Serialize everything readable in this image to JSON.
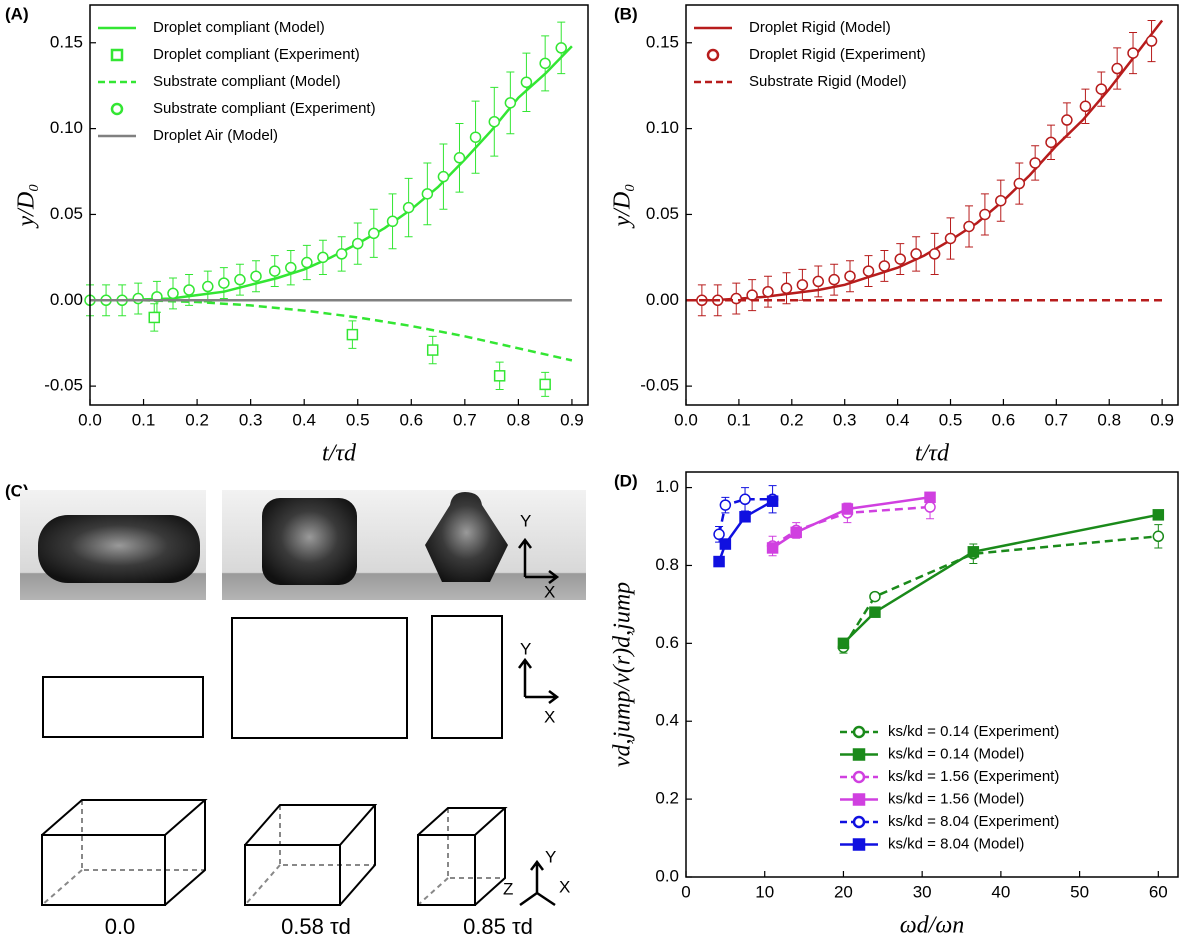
{
  "chart_data": [
    {
      "type": "line",
      "panel_label": "(A)",
      "x_label": "t/τd",
      "y_label": "y/D₀",
      "xlim": [
        0,
        0.93
      ],
      "ylim": [
        -0.061,
        0.172
      ],
      "xticks": [
        {
          "value": 0,
          "label": "0.0"
        },
        0.1,
        0.2,
        0.3,
        0.4,
        0.5,
        0.6,
        0.7,
        0.8,
        0.9
      ],
      "yticks": [
        -0.05,
        {
          "value": 0,
          "label": "0.00"
        },
        0.05,
        {
          "value": 0.1,
          "label": "0.10"
        },
        0.15
      ],
      "legend": "upper left",
      "series": [
        {
          "name": "Droplet compliant (Model)",
          "color": "#33e633",
          "line_style": "solid",
          "x": [
            0,
            0.05,
            0.1,
            0.15,
            0.2,
            0.25,
            0.3,
            0.35,
            0.4,
            0.45,
            0.5,
            0.55,
            0.6,
            0.65,
            0.7,
            0.75,
            0.8,
            0.85,
            0.9
          ],
          "values": [
            0,
            0,
            0.0005,
            0.001,
            0.003,
            0.005,
            0.009,
            0.013,
            0.018,
            0.025,
            0.033,
            0.042,
            0.053,
            0.066,
            0.082,
            0.099,
            0.118,
            0.132,
            0.148
          ]
        },
        {
          "name": "Droplet compliant (Experiment)",
          "color": "#33e633",
          "marker": "open-square",
          "x": [
            0.12,
            0.49,
            0.64,
            0.765,
            0.85
          ],
          "values": [
            -0.01,
            -0.02,
            -0.029,
            -0.044,
            -0.049
          ],
          "errors": [
            0.008,
            0.008,
            0.008,
            0.008,
            0.007
          ]
        },
        {
          "name": "Substrate compliant (Model)",
          "color": "#33e633",
          "line_style": "dashed",
          "x": [
            0,
            0.1,
            0.2,
            0.3,
            0.4,
            0.5,
            0.6,
            0.7,
            0.8,
            0.9
          ],
          "values": [
            0,
            0,
            -0.001,
            -0.003,
            -0.006,
            -0.01,
            -0.015,
            -0.021,
            -0.028,
            -0.035
          ]
        },
        {
          "name": "Substrate compliant (Experiment)",
          "color": "#33e633",
          "marker": "open-circle",
          "x": [
            0,
            0.03,
            0.06,
            0.09,
            0.125,
            0.155,
            0.185,
            0.22,
            0.25,
            0.28,
            0.31,
            0.345,
            0.375,
            0.405,
            0.435,
            0.47,
            0.5,
            0.53,
            0.565,
            0.595,
            0.63,
            0.66,
            0.69,
            0.72,
            0.755,
            0.785,
            0.815,
            0.85,
            0.88
          ],
          "values": [
            0,
            0,
            0,
            0.001,
            0.002,
            0.004,
            0.006,
            0.008,
            0.01,
            0.012,
            0.014,
            0.017,
            0.019,
            0.022,
            0.025,
            0.027,
            0.033,
            0.039,
            0.046,
            0.054,
            0.062,
            0.072,
            0.083,
            0.095,
            0.104,
            0.115,
            0.127,
            0.138,
            0.147
          ],
          "errors": [
            0.009,
            0.009,
            0.009,
            0.009,
            0.009,
            0.009,
            0.009,
            0.009,
            0.009,
            0.009,
            0.009,
            0.009,
            0.01,
            0.01,
            0.01,
            0.01,
            0.012,
            0.014,
            0.016,
            0.017,
            0.018,
            0.019,
            0.02,
            0.021,
            0.02,
            0.018,
            0.017,
            0.016,
            0.015
          ]
        },
        {
          "name": "Droplet Air (Model)",
          "color": "#808080",
          "line_style": "solid",
          "x": [
            0,
            0.9
          ],
          "values": [
            0,
            0
          ]
        }
      ]
    },
    {
      "type": "line",
      "panel_label": "(B)",
      "x_label": "t/τd",
      "y_label": "y/D₀",
      "xlim": [
        0,
        0.93
      ],
      "ylim": [
        -0.061,
        0.172
      ],
      "xticks": [
        {
          "value": 0,
          "label": "0.0"
        },
        0.1,
        0.2,
        0.3,
        0.4,
        0.5,
        0.6,
        0.7,
        0.8,
        0.9
      ],
      "yticks": [
        -0.05,
        {
          "value": 0,
          "label": "0.00"
        },
        0.05,
        {
          "value": 0.1,
          "label": "0.10"
        },
        0.15
      ],
      "legend": "upper left",
      "series": [
        {
          "name": "Droplet Rigid (Model)",
          "color": "#b71c1c",
          "line_style": "solid",
          "x": [
            0,
            0.05,
            0.1,
            0.15,
            0.2,
            0.25,
            0.3,
            0.35,
            0.4,
            0.45,
            0.5,
            0.55,
            0.6,
            0.65,
            0.7,
            0.75,
            0.8,
            0.85,
            0.9
          ],
          "values": [
            0,
            0,
            0.001,
            0.002,
            0.004,
            0.006,
            0.009,
            0.014,
            0.019,
            0.026,
            0.035,
            0.045,
            0.058,
            0.073,
            0.09,
            0.105,
            0.123,
            0.143,
            0.163
          ]
        },
        {
          "name": "Droplet Rigid (Experiment)",
          "color": "#b71c1c",
          "marker": "open-circle",
          "x": [
            0.03,
            0.06,
            0.095,
            0.125,
            0.155,
            0.19,
            0.22,
            0.25,
            0.28,
            0.31,
            0.345,
            0.375,
            0.405,
            0.435,
            0.47,
            0.5,
            0.535,
            0.565,
            0.595,
            0.63,
            0.66,
            0.69,
            0.72,
            0.755,
            0.785,
            0.815,
            0.845,
            0.88
          ],
          "values": [
            0,
            0,
            0.001,
            0.003,
            0.005,
            0.007,
            0.009,
            0.011,
            0.012,
            0.014,
            0.017,
            0.02,
            0.024,
            0.027,
            0.027,
            0.036,
            0.043,
            0.05,
            0.058,
            0.068,
            0.08,
            0.092,
            0.105,
            0.113,
            0.123,
            0.135,
            0.144,
            0.151
          ],
          "errors": [
            0.009,
            0.009,
            0.009,
            0.009,
            0.009,
            0.009,
            0.009,
            0.009,
            0.009,
            0.009,
            0.009,
            0.009,
            0.009,
            0.01,
            0.012,
            0.012,
            0.012,
            0.012,
            0.012,
            0.012,
            0.01,
            0.01,
            0.01,
            0.01,
            0.01,
            0.012,
            0.012,
            0.012
          ]
        },
        {
          "name": "Substrate Rigid (Model)",
          "color": "#b71c1c",
          "line_style": "dashed",
          "x": [
            0,
            0.9
          ],
          "values": [
            0,
            0
          ]
        }
      ]
    },
    {
      "type": "line",
      "panel_label": "(D)",
      "x_label": "ωd/ωn",
      "y_label": "vd,jump/v(r)d,jump",
      "xlim": [
        0,
        62.5
      ],
      "ylim": [
        0,
        1.04
      ],
      "xticks": [
        0,
        10,
        20,
        30,
        40,
        50,
        60
      ],
      "yticks": [
        {
          "value": 0,
          "label": "0.0"
        },
        0.2,
        0.4,
        0.6,
        0.8,
        {
          "value": 1,
          "label": "1.0"
        }
      ],
      "legend": "lower right",
      "series": [
        {
          "name": "ks/kd = 0.14 (Experiment)",
          "color": "#1a8a1a",
          "line_style": "dashed",
          "marker": "open-circle",
          "x": [
            20,
            24,
            36.5,
            60
          ],
          "values": [
            0.59,
            0.72,
            0.83,
            0.875
          ],
          "errors": [
            0.015,
            0.01,
            0.025,
            0.03
          ]
        },
        {
          "name": "ks/kd = 0.14 (Model)",
          "color": "#1a8a1a",
          "line_style": "solid",
          "marker": "filled-square",
          "x": [
            20,
            24,
            36.5,
            60
          ],
          "values": [
            0.6,
            0.68,
            0.835,
            0.93
          ]
        },
        {
          "name": "ks/kd = 1.56 (Experiment)",
          "color": "#d040e0",
          "line_style": "dashed",
          "marker": "open-circle",
          "x": [
            11,
            14,
            20.5,
            31
          ],
          "values": [
            0.85,
            0.89,
            0.935,
            0.95
          ],
          "errors": [
            0.025,
            0.02,
            0.025,
            0.03
          ]
        },
        {
          "name": "ks/kd = 1.56 (Model)",
          "color": "#d040e0",
          "line_style": "solid",
          "marker": "filled-square",
          "x": [
            11,
            14,
            20.5,
            31
          ],
          "values": [
            0.845,
            0.885,
            0.945,
            0.975
          ]
        },
        {
          "name": "ks/kd = 8.04 (Experiment)",
          "color": "#1010e0",
          "line_style": "dashed",
          "marker": "open-circle",
          "x": [
            4.2,
            5,
            7.5,
            11
          ],
          "values": [
            0.88,
            0.955,
            0.97,
            0.97
          ],
          "errors": [
            0.02,
            0.02,
            0.03,
            0.035
          ]
        },
        {
          "name": "ks/kd = 8.04 (Model)",
          "color": "#1010e0",
          "line_style": "solid",
          "marker": "filled-square",
          "x": [
            4.2,
            5,
            7.5,
            11
          ],
          "values": [
            0.81,
            0.855,
            0.925,
            0.965
          ]
        }
      ]
    }
  ],
  "panel_c": {
    "label": "(C)",
    "captions": [
      "0.0",
      "0.58 τd",
      "0.85 τd"
    ],
    "axes": [
      [
        "Y",
        "X"
      ],
      [
        "Y",
        "X"
      ],
      [
        "Y",
        "Z",
        "X"
      ]
    ]
  }
}
